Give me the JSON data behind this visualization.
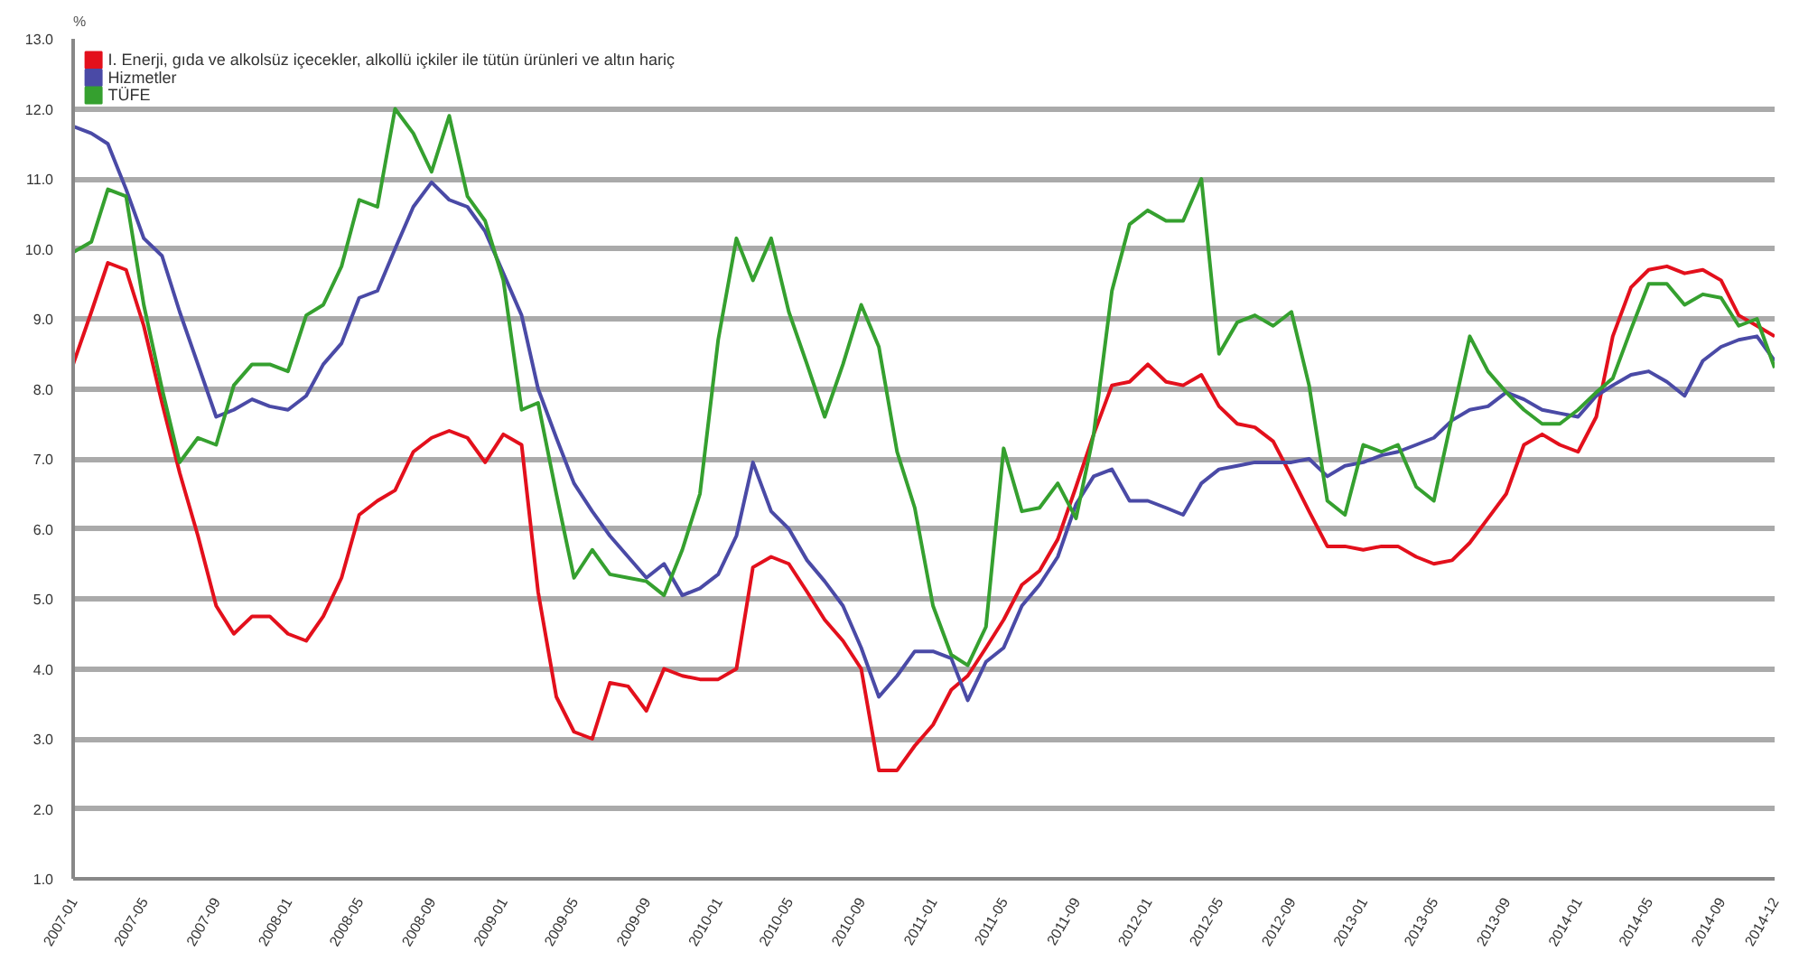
{
  "chart_data": {
    "type": "line",
    "ylabel": "%",
    "x": [
      "2007-01",
      "2007-02",
      "2007-03",
      "2007-04",
      "2007-05",
      "2007-06",
      "2007-07",
      "2007-08",
      "2007-09",
      "2007-10",
      "2007-11",
      "2007-12",
      "2008-01",
      "2008-02",
      "2008-03",
      "2008-04",
      "2008-05",
      "2008-06",
      "2008-07",
      "2008-08",
      "2008-09",
      "2008-10",
      "2008-11",
      "2008-12",
      "2009-01",
      "2009-02",
      "2009-03",
      "2009-04",
      "2009-05",
      "2009-06",
      "2009-07",
      "2009-08",
      "2009-09",
      "2009-10",
      "2009-11",
      "2009-12",
      "2010-01",
      "2010-02",
      "2010-03",
      "2010-04",
      "2010-05",
      "2010-06",
      "2010-07",
      "2010-08",
      "2010-09",
      "2010-10",
      "2010-11",
      "2010-12",
      "2011-01",
      "2011-02",
      "2011-03",
      "2011-04",
      "2011-05",
      "2011-06",
      "2011-07",
      "2011-08",
      "2011-09",
      "2011-10",
      "2011-11",
      "2011-12",
      "2012-01",
      "2012-02",
      "2012-03",
      "2012-04",
      "2012-05",
      "2012-06",
      "2012-07",
      "2012-08",
      "2012-09",
      "2012-10",
      "2012-11",
      "2012-12",
      "2013-01",
      "2013-02",
      "2013-03",
      "2013-04",
      "2013-05",
      "2013-06",
      "2013-07",
      "2013-08",
      "2013-09",
      "2013-10",
      "2013-11",
      "2013-12",
      "2014-01",
      "2014-02",
      "2014-03",
      "2014-04",
      "2014-05",
      "2014-06",
      "2014-07",
      "2014-08",
      "2014-09",
      "2014-10",
      "2014-11",
      "2014-12"
    ],
    "series": [
      {
        "name": "I. Enerji, gıda ve alkolsüz içecekler, alkollü içkiler ile tütün ürünleri ve altın hariç",
        "color": "#e3101c",
        "values": [
          8.35,
          9.1,
          9.8,
          9.7,
          8.9,
          7.8,
          6.8,
          5.9,
          4.9,
          4.5,
          4.75,
          4.75,
          4.5,
          4.4,
          4.75,
          5.3,
          6.2,
          6.4,
          6.55,
          7.1,
          7.3,
          7.4,
          7.3,
          6.95,
          7.35,
          7.2,
          5.1,
          3.6,
          3.1,
          3.0,
          3.8,
          3.75,
          3.4,
          4.0,
          3.9,
          3.85,
          3.85,
          4.0,
          5.45,
          5.6,
          5.5,
          5.1,
          4.7,
          4.4,
          4.0,
          2.55,
          2.55,
          2.9,
          3.2,
          3.7,
          3.9,
          4.3,
          4.7,
          5.2,
          5.4,
          5.85,
          6.6,
          7.35,
          8.05,
          8.1,
          8.35,
          8.1,
          8.05,
          8.2,
          7.75,
          7.5,
          7.45,
          7.25,
          6.75,
          6.25,
          5.75,
          5.75,
          5.7,
          5.75,
          5.75,
          5.6,
          5.5,
          5.55,
          5.8,
          6.15,
          6.5,
          7.2,
          7.35,
          7.2,
          7.1,
          7.6,
          8.75,
          9.45,
          9.7,
          9.75,
          9.65,
          9.7,
          9.55,
          9.05,
          8.9,
          8.75
        ]
      },
      {
        "name": "Hizmetler",
        "color": "#4a4aa6",
        "values": [
          11.75,
          11.65,
          11.5,
          10.85,
          10.15,
          9.9,
          9.1,
          8.35,
          7.6,
          7.7,
          7.85,
          7.75,
          7.7,
          7.9,
          8.35,
          8.65,
          9.3,
          9.4,
          10.0,
          10.6,
          10.95,
          10.7,
          10.6,
          10.25,
          9.65,
          9.05,
          8.0,
          7.3,
          6.65,
          6.25,
          5.9,
          5.6,
          5.3,
          5.5,
          5.05,
          5.15,
          5.35,
          5.9,
          6.95,
          6.25,
          6.0,
          5.55,
          5.25,
          4.9,
          4.3,
          3.6,
          3.9,
          4.25,
          4.25,
          4.15,
          3.55,
          4.1,
          4.3,
          4.9,
          5.2,
          5.6,
          6.35,
          6.75,
          6.85,
          6.4,
          6.4,
          6.3,
          6.2,
          6.65,
          6.85,
          6.9,
          6.95,
          6.95,
          6.95,
          7.0,
          6.75,
          6.9,
          6.95,
          7.05,
          7.1,
          7.2,
          7.3,
          7.55,
          7.7,
          7.75,
          7.95,
          7.85,
          7.7,
          7.65,
          7.6,
          7.9,
          8.05,
          8.2,
          8.25,
          8.1,
          7.9,
          8.4,
          8.6,
          8.7,
          8.75,
          8.4
        ]
      },
      {
        "name": "TÜFE",
        "color": "#35a02f",
        "values": [
          9.95,
          10.1,
          10.85,
          10.75,
          9.2,
          8.0,
          6.95,
          7.3,
          7.2,
          8.05,
          8.35,
          8.35,
          8.25,
          9.05,
          9.2,
          9.75,
          10.7,
          10.6,
          12.0,
          11.65,
          11.1,
          11.9,
          10.75,
          10.4,
          9.55,
          7.7,
          7.8,
          6.5,
          5.3,
          5.7,
          5.35,
          5.3,
          5.25,
          5.05,
          5.7,
          6.5,
          8.7,
          10.15,
          9.55,
          10.15,
          9.1,
          8.35,
          7.6,
          8.35,
          9.2,
          8.6,
          7.1,
          6.3,
          4.9,
          4.2,
          4.05,
          4.6,
          7.15,
          6.25,
          6.3,
          6.65,
          6.15,
          7.35,
          9.4,
          10.35,
          10.55,
          10.4,
          10.4,
          11.0,
          8.5,
          8.95,
          9.05,
          8.9,
          9.1,
          8.05,
          6.4,
          6.2,
          7.2,
          7.1,
          7.2,
          6.6,
          6.4,
          7.6,
          8.75,
          8.25,
          7.95,
          7.7,
          7.5,
          7.5,
          7.7,
          7.95,
          8.15,
          8.85,
          9.5,
          9.5,
          9.2,
          9.35,
          9.3,
          8.9,
          9.0,
          8.3
        ]
      }
    ],
    "xlim": [
      "2007-01",
      "2014-12"
    ],
    "xticks": [
      "2007-01",
      "2007-05",
      "2007-09",
      "2008-01",
      "2008-05",
      "2008-09",
      "2009-01",
      "2009-05",
      "2009-09",
      "2010-01",
      "2010-05",
      "2010-09",
      "2011-01",
      "2011-05",
      "2011-09",
      "2012-01",
      "2012-05",
      "2012-09",
      "2013-01",
      "2013-05",
      "2013-09",
      "2014-01",
      "2014-05",
      "2014-09",
      "2014-12"
    ],
    "ylim": [
      1.0,
      13.0
    ],
    "yticks": [
      {
        "value": 1,
        "label": "1.0"
      },
      {
        "value": 2,
        "label": "2.0"
      },
      {
        "value": 3,
        "label": "3.0"
      },
      {
        "value": 4,
        "label": "4.0"
      },
      {
        "value": 5,
        "label": "5.0"
      },
      {
        "value": 6,
        "label": "6.0"
      },
      {
        "value": 7,
        "label": "7.0"
      },
      {
        "value": 8,
        "label": "8.0"
      },
      {
        "value": 9,
        "label": "9.0"
      },
      {
        "value": 10,
        "label": "10.0"
      },
      {
        "value": 11,
        "label": "11.0"
      },
      {
        "value": 12,
        "label": "12.0"
      },
      {
        "value": 13,
        "label": "13.0"
      }
    ],
    "grid": "y",
    "legend": "top left",
    "marker": "none",
    "line_style": "solid"
  }
}
